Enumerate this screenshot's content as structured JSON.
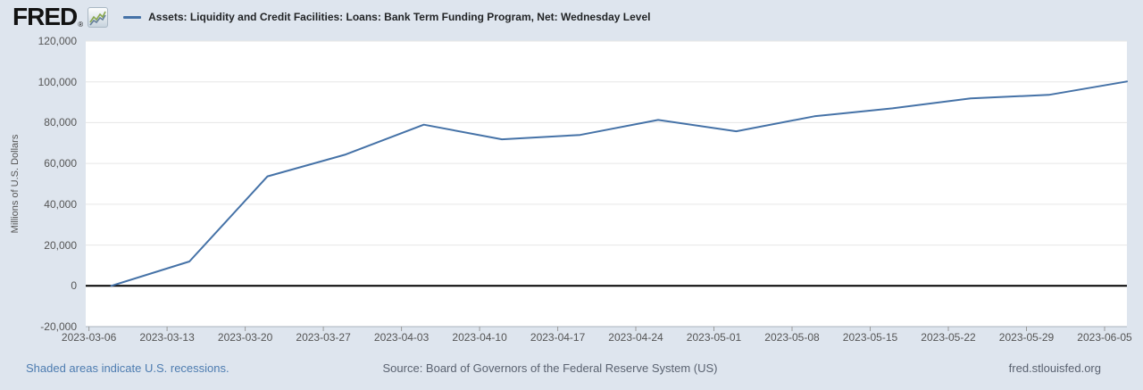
{
  "header": {
    "brand": "FRED",
    "registered_mark": "®",
    "series_title": "Assets: Liquidity and Credit Facilities: Loans: Bank Term Funding Program, Net: Wednesday Level"
  },
  "footer": {
    "recession_note": "Shaded areas indicate U.S. recessions.",
    "source": "Source: Board of Governors of the Federal Reserve System (US)",
    "site": "fred.stlouisfed.org"
  },
  "colors": {
    "background": "#dee5ee",
    "plot_background": "#ffffff",
    "line": "#4572a7",
    "gridline": "#e6e6e6",
    "zero_line": "#000000",
    "axis_line": "#a9b3bd",
    "tick_mark": "#999999",
    "axis_text": "#555555",
    "link": "#4d7cb0"
  },
  "chart_data": {
    "type": "line",
    "title": "Assets: Liquidity and Credit Facilities: Loans: Bank Term Funding Program, Net: Wednesday Level",
    "xlabel": "",
    "ylabel": "Millions of U.S. Dollars",
    "ylim": [
      -20000,
      120000
    ],
    "grid": true,
    "legend_position": "top",
    "y_ticks": [
      120000,
      100000,
      80000,
      60000,
      40000,
      20000,
      0,
      -20000
    ],
    "y_tick_labels": [
      "120,000",
      "100,000",
      "80,000",
      "60,000",
      "40,000",
      "20,000",
      "0",
      "-20,000"
    ],
    "x_tick_labels": [
      "2023-03-06",
      "2023-03-13",
      "2023-03-20",
      "2023-03-27",
      "2023-04-03",
      "2023-04-10",
      "2023-04-17",
      "2023-04-24",
      "2023-05-01",
      "2023-05-08",
      "2023-05-15",
      "2023-05-22",
      "2023-05-29",
      "2023-06-05"
    ],
    "series": [
      {
        "name": "Assets: Liquidity and Credit Facilities: Loans: Bank Term Funding Program, Net: Wednesday Level",
        "points": [
          [
            "2023-03-08",
            0
          ],
          [
            "2023-03-15",
            11943
          ],
          [
            "2023-03-22",
            53669
          ],
          [
            "2023-03-29",
            64403
          ],
          [
            "2023-04-05",
            79021
          ],
          [
            "2023-04-12",
            71837
          ],
          [
            "2023-04-19",
            73982
          ],
          [
            "2023-04-26",
            81327
          ],
          [
            "2023-05-03",
            75778
          ],
          [
            "2023-05-10",
            83101
          ],
          [
            "2023-05-17",
            87006
          ],
          [
            "2023-05-24",
            91907
          ],
          [
            "2023-05-31",
            93615
          ],
          [
            "2023-06-07",
            100161
          ]
        ]
      }
    ]
  }
}
